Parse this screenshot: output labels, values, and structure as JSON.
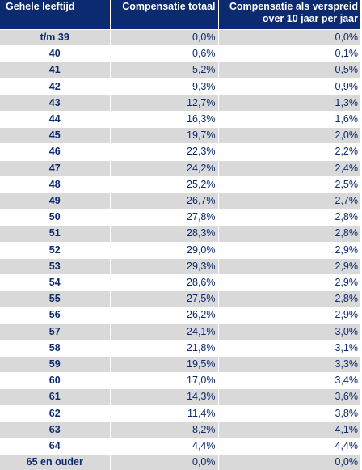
{
  "table": {
    "headers": {
      "age": "Gehele leeftijd",
      "total": "Compensatie totaal",
      "spread_line1": "Compensatie als verspreid",
      "spread_line2": "over 10 jaar per jaar"
    },
    "rows": [
      {
        "age": "t/m 39",
        "total": "0,0%",
        "spread": "0,0%"
      },
      {
        "age": "40",
        "total": "0,6%",
        "spread": "0,1%"
      },
      {
        "age": "41",
        "total": "5,2%",
        "spread": "0,5%"
      },
      {
        "age": "42",
        "total": "9,3%",
        "spread": "0,9%"
      },
      {
        "age": "43",
        "total": "12,7%",
        "spread": "1,3%"
      },
      {
        "age": "44",
        "total": "16,3%",
        "spread": "1,6%"
      },
      {
        "age": "45",
        "total": "19,7%",
        "spread": "2,0%"
      },
      {
        "age": "46",
        "total": "22,3%",
        "spread": "2,2%"
      },
      {
        "age": "47",
        "total": "24,2%",
        "spread": "2,4%"
      },
      {
        "age": "48",
        "total": "25,2%",
        "spread": "2,5%"
      },
      {
        "age": "49",
        "total": "26,7%",
        "spread": "2,7%"
      },
      {
        "age": "50",
        "total": "27,8%",
        "spread": "2,8%"
      },
      {
        "age": "51",
        "total": "28,3%",
        "spread": "2,8%"
      },
      {
        "age": "52",
        "total": "29,0%",
        "spread": "2,9%"
      },
      {
        "age": "53",
        "total": "29,3%",
        "spread": "2,9%"
      },
      {
        "age": "54",
        "total": "28,6%",
        "spread": "2,9%"
      },
      {
        "age": "55",
        "total": "27,5%",
        "spread": "2,8%"
      },
      {
        "age": "56",
        "total": "26,2%",
        "spread": "2,9%"
      },
      {
        "age": "57",
        "total": "24,1%",
        "spread": "3,0%"
      },
      {
        "age": "58",
        "total": "21,8%",
        "spread": "3,1%"
      },
      {
        "age": "59",
        "total": "19,5%",
        "spread": "3,3%"
      },
      {
        "age": "60",
        "total": "17,0%",
        "spread": "3,4%"
      },
      {
        "age": "61",
        "total": "14,3%",
        "spread": "3,6%"
      },
      {
        "age": "62",
        "total": "11,4%",
        "spread": "3,8%"
      },
      {
        "age": "63",
        "total": "8,2%",
        "spread": "4,1%"
      },
      {
        "age": "64",
        "total": "4,4%",
        "spread": "4,4%"
      },
      {
        "age": "65 en ouder",
        "total": "0,0%",
        "spread": "0,0%"
      }
    ]
  },
  "colors": {
    "header_bg": "#0b2a6f",
    "text": "#0b2a6f",
    "stripe": "#d9d9d9"
  }
}
